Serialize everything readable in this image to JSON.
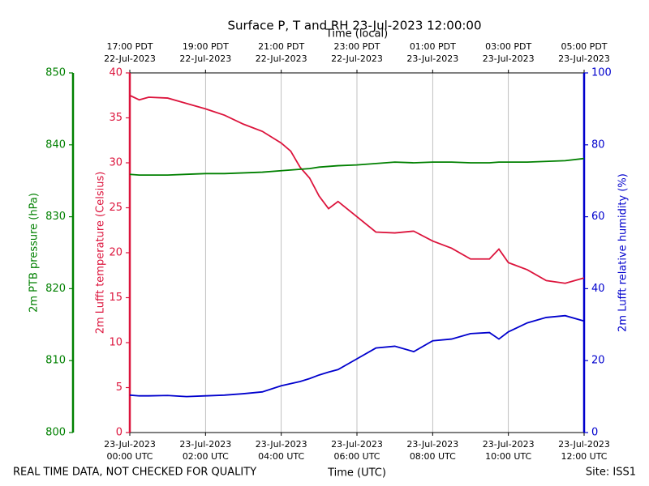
{
  "chart_data": {
    "type": "line",
    "title": "Surface P, T and RH 23-Jul-2023 12:00:00",
    "xlabel": "Time (UTC)",
    "x2label": "Time (local)",
    "ylabel": "2m Lufft temperature (Celsius)",
    "y2label": "2m Lufft relative humidity (%)",
    "y3label": "2m PTB pressure (hPa)",
    "footer_left": "REAL TIME DATA, NOT CHECKED FOR QUALITY",
    "footer_right": "Site: ISS1",
    "grid": true,
    "xlim": [
      0,
      12
    ],
    "xticks": [
      {
        "value": 0,
        "label": "23-Jul-2023\n00:00 UTC"
      },
      {
        "value": 2,
        "label": "23-Jul-2023\n02:00 UTC"
      },
      {
        "value": 4,
        "label": "23-Jul-2023\n04:00 UTC"
      },
      {
        "value": 6,
        "label": "23-Jul-2023\n06:00 UTC"
      },
      {
        "value": 8,
        "label": "23-Jul-2023\n08:00 UTC"
      },
      {
        "value": 10,
        "label": "23-Jul-2023\n10:00 UTC"
      },
      {
        "value": 12,
        "label": "23-Jul-2023\n12:00 UTC"
      }
    ],
    "x2ticks": [
      {
        "value": 0,
        "label": "17:00 PDT\n22-Jul-2023"
      },
      {
        "value": 2,
        "label": "19:00 PDT\n22-Jul-2023"
      },
      {
        "value": 4,
        "label": "21:00 PDT\n22-Jul-2023"
      },
      {
        "value": 6,
        "label": "23:00 PDT\n22-Jul-2023"
      },
      {
        "value": 8,
        "label": "01:00 PDT\n23-Jul-2023"
      },
      {
        "value": 10,
        "label": "03:00 PDT\n23-Jul-2023"
      },
      {
        "value": 12,
        "label": "05:00 PDT\n23-Jul-2023"
      }
    ],
    "ylim": [
      0,
      40
    ],
    "yticks": [
      0,
      5,
      10,
      15,
      20,
      25,
      30,
      35,
      40
    ],
    "y2lim": [
      0,
      100
    ],
    "y2ticks": [
      0,
      20,
      40,
      60,
      80,
      100
    ],
    "y3lim": [
      800,
      850
    ],
    "y3ticks": [
      800,
      810,
      820,
      830,
      840,
      850
    ],
    "x": [
      0,
      0.25,
      0.5,
      1,
      1.5,
      2,
      2.5,
      3,
      3.5,
      4,
      4.25,
      4.5,
      4.75,
      5,
      5.25,
      5.5,
      6,
      6.5,
      7,
      7.5,
      8,
      8.5,
      9,
      9.5,
      9.75,
      10,
      10.5,
      11,
      11.5,
      12
    ],
    "series": [
      {
        "name": "2m Lufft temperature",
        "color": "#dc143c",
        "axis": "y",
        "values": [
          37.5,
          37,
          37.3,
          37.2,
          36.6,
          36,
          35.3,
          34.3,
          33.5,
          32.2,
          31.3,
          29.5,
          28.3,
          26.3,
          24.9,
          25.7,
          24,
          22.3,
          22.2,
          22.4,
          21.3,
          20.5,
          19.3,
          19.3,
          20.4,
          18.9,
          18.1,
          16.9,
          16.6,
          17.2
        ]
      },
      {
        "name": "2m PTB pressure",
        "color": "#008000",
        "axis": "y3",
        "values": [
          835.9,
          835.8,
          835.8,
          835.8,
          835.9,
          836,
          836,
          836.1,
          836.2,
          836.4,
          836.5,
          836.6,
          836.7,
          836.9,
          837,
          837.1,
          837.2,
          837.4,
          837.6,
          837.5,
          837.6,
          837.6,
          837.5,
          837.5,
          837.6,
          837.6,
          837.6,
          837.7,
          837.8,
          838.1
        ]
      },
      {
        "name": "2m Lufft relative humidity",
        "color": "#0000cd",
        "axis": "y2",
        "values": [
          10.4,
          10.2,
          10.2,
          10.3,
          10,
          10.2,
          10.4,
          10.8,
          11.3,
          13,
          13.6,
          14.2,
          15,
          16,
          16.8,
          17.5,
          20.5,
          23.5,
          24,
          22.5,
          25.5,
          26,
          27.5,
          27.8,
          26,
          28,
          30.5,
          32,
          32.5,
          31
        ]
      }
    ]
  }
}
